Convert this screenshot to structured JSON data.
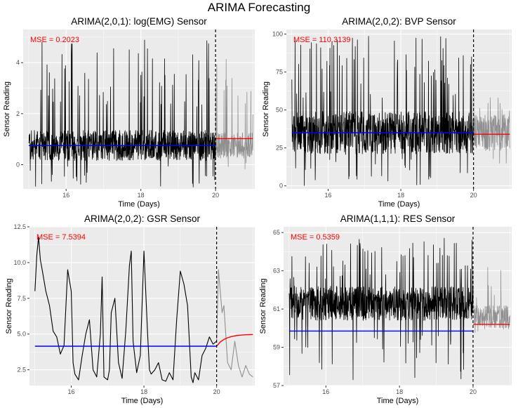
{
  "figure_title": "ARIMA Forecasting",
  "colors": {
    "panel_bg": "#ebebeb",
    "grid": "#ffffff",
    "observed": "#000000",
    "fitted": "#0000ff",
    "forecast": "#ff0000",
    "holdout": "#808080",
    "mse_text": "#ff0000"
  },
  "chart_data": [
    {
      "type": "line",
      "title": "ARIMA(2,0,1): log(EMG) Sensor",
      "xlabel": "Time (Days)",
      "ylabel": "Sensor Reading",
      "annotation": "MSE = 0.2023",
      "xlim": [
        14.85,
        21.05
      ],
      "ylim": [
        -0.95,
        5.3
      ],
      "x_ticks": [
        16,
        18,
        20
      ],
      "y_ticks": [
        0,
        2,
        4
      ],
      "grid": true,
      "split_x": 20,
      "series": [
        {
          "role": "observed",
          "x_range": [
            15.0,
            20.0
          ],
          "baseline": 0.75,
          "spread": 0.6,
          "peak": 5.0,
          "floor": -0.9
        },
        {
          "role": "holdout",
          "x_range": [
            20.0,
            21.0
          ],
          "baseline": 0.75,
          "spread": 0.5,
          "peak": 4.2,
          "floor": -0.2
        },
        {
          "role": "fitted",
          "x": [
            15.0,
            20.0
          ],
          "y": [
            0.75,
            0.75
          ]
        },
        {
          "role": "forecast",
          "x": [
            20.0,
            21.0
          ],
          "y": [
            1.02,
            1.02
          ]
        }
      ]
    },
    {
      "type": "line",
      "title": "ARIMA(2,0,2): BVP Sensor",
      "xlabel": "Time (Days)",
      "ylabel": "Sensor Reading",
      "annotation": "MSE = 110.3139",
      "xlim": [
        14.85,
        21.05
      ],
      "ylim": [
        -2,
        103
      ],
      "x_ticks": [
        16,
        18,
        20
      ],
      "y_ticks": [
        0,
        25,
        50,
        75,
        100
      ],
      "grid": true,
      "split_x": 20,
      "series": [
        {
          "role": "observed",
          "x_range": [
            15.0,
            20.0
          ],
          "baseline": 35,
          "spread": 14,
          "peak": 100,
          "floor": 0
        },
        {
          "role": "holdout",
          "x_range": [
            20.0,
            21.0
          ],
          "baseline": 35,
          "spread": 12,
          "peak": 62,
          "floor": 10
        },
        {
          "role": "fitted",
          "x": [
            15.0,
            20.0
          ],
          "y": [
            35,
            35
          ]
        },
        {
          "role": "forecast",
          "x": [
            20.0,
            21.0
          ],
          "y": [
            34,
            34
          ]
        }
      ]
    },
    {
      "type": "line",
      "title": "ARIMA(2,0,2): GSR Sensor",
      "xlabel": "Time (Days)",
      "ylabel": "Sensor Reading",
      "annotation": "MSE = 7.5394",
      "xlim": [
        14.85,
        21.05
      ],
      "ylim": [
        1.4,
        12.5
      ],
      "x_ticks": [
        16,
        18,
        20
      ],
      "y_ticks": [
        2.5,
        5.0,
        7.5,
        10.0,
        12.5
      ],
      "y_tick_labels": [
        "2.5",
        "5.0",
        "7.5",
        "10.0",
        "12.5"
      ],
      "grid": true,
      "split_x": 20,
      "series": [
        {
          "role": "observed",
          "x": [
            15.0,
            15.05,
            15.1,
            15.15,
            15.2,
            15.3,
            15.4,
            15.5,
            15.6,
            15.7,
            15.8,
            15.9,
            16.0,
            16.05,
            16.1,
            16.2,
            16.3,
            16.4,
            16.5,
            16.6,
            16.7,
            16.8,
            16.85,
            16.9,
            17.0,
            17.05,
            17.1,
            17.2,
            17.3,
            17.4,
            17.5,
            17.6,
            17.65,
            17.7,
            17.8,
            17.9,
            18.0,
            18.1,
            18.15,
            18.2,
            18.3,
            18.4,
            18.5,
            18.6,
            18.7,
            18.8,
            18.9,
            19.0,
            19.1,
            19.2,
            19.3,
            19.35,
            19.4,
            19.5,
            19.6,
            19.7,
            19.8,
            19.9,
            20.0
          ],
          "y": [
            8.0,
            10.5,
            11.8,
            10.2,
            9.5,
            8.0,
            7.0,
            5.2,
            4.8,
            3.6,
            4.2,
            9.5,
            8.0,
            3.0,
            2.2,
            1.8,
            3.5,
            5.0,
            6.0,
            2.5,
            2.0,
            5.0,
            9.0,
            2.0,
            1.8,
            2.5,
            6.5,
            7.5,
            3.0,
            1.9,
            5.2,
            9.8,
            10.8,
            4.5,
            2.3,
            3.5,
            10.8,
            5.0,
            2.5,
            2.2,
            2.5,
            3.0,
            1.8,
            1.7,
            2.3,
            1.8,
            6.0,
            9.4,
            8.5,
            7.0,
            2.0,
            1.6,
            2.3,
            1.8,
            3.5,
            4.0,
            4.8,
            4.3,
            4.5
          ]
        },
        {
          "role": "holdout",
          "x": [
            20.0,
            20.05,
            20.1,
            20.15,
            20.2,
            20.3,
            20.4,
            20.5,
            20.6,
            20.7,
            20.8,
            20.9,
            21.0
          ],
          "y": [
            4.5,
            9.5,
            8.0,
            6.5,
            7.0,
            3.0,
            2.5,
            4.5,
            2.8,
            2.0,
            2.8,
            2.2,
            2.0
          ]
        },
        {
          "role": "fitted",
          "x": [
            15.0,
            20.0
          ],
          "y": [
            4.15,
            4.15
          ]
        },
        {
          "role": "forecast",
          "x": [
            20.0,
            20.1,
            20.2,
            20.3,
            20.4,
            20.5,
            20.6,
            20.7,
            20.8,
            20.9,
            21.0
          ],
          "y": [
            4.15,
            4.45,
            4.62,
            4.74,
            4.82,
            4.87,
            4.91,
            4.93,
            4.95,
            4.96,
            4.97
          ]
        }
      ]
    },
    {
      "type": "line",
      "title": "ARIMA(1,1,1): RES Sensor",
      "xlabel": "Time (Days)",
      "ylabel": "Sensor Reading",
      "annotation": "MSE = 0.5359",
      "xlim": [
        14.85,
        21.05
      ],
      "ylim": [
        57,
        65.3
      ],
      "x_ticks": [
        16,
        18,
        20
      ],
      "y_ticks": [
        57,
        59,
        61,
        63,
        65
      ],
      "grid": true,
      "split_x": 20,
      "series": [
        {
          "role": "observed",
          "x_range": [
            15.0,
            20.0
          ],
          "baseline": 61.3,
          "spread": 0.9,
          "peak": 64.9,
          "floor": 57.3
        },
        {
          "role": "holdout",
          "x_range": [
            20.0,
            21.0
          ],
          "baseline": 60.6,
          "spread": 0.6,
          "peak": 63.2,
          "floor": 59.5
        },
        {
          "role": "fitted",
          "x": [
            15.0,
            20.0
          ],
          "y": [
            59.85,
            59.85
          ]
        },
        {
          "role": "forecast",
          "x": [
            20.0,
            21.0
          ],
          "y": [
            60.2,
            60.2
          ]
        }
      ]
    }
  ]
}
